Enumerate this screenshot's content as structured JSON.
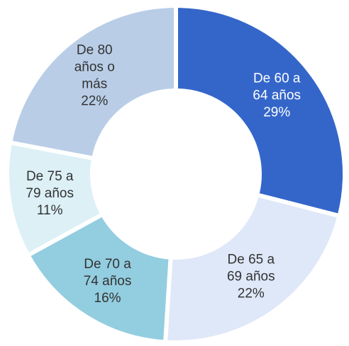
{
  "chart_data": {
    "type": "donut",
    "categories": [
      "De 60 a 64 años",
      "De 65 a 69 años",
      "De 70 a 74 años",
      "De 75 a 79 años",
      "De 80 años o más"
    ],
    "values": [
      29,
      22,
      16,
      11,
      22
    ],
    "value_labels": [
      "29%",
      "22%",
      "16%",
      "11%",
      "22%"
    ],
    "colors": [
      "#3466ca",
      "#dfe8f8",
      "#93cde0",
      "#dcf0f6",
      "#b9cde7"
    ]
  }
}
